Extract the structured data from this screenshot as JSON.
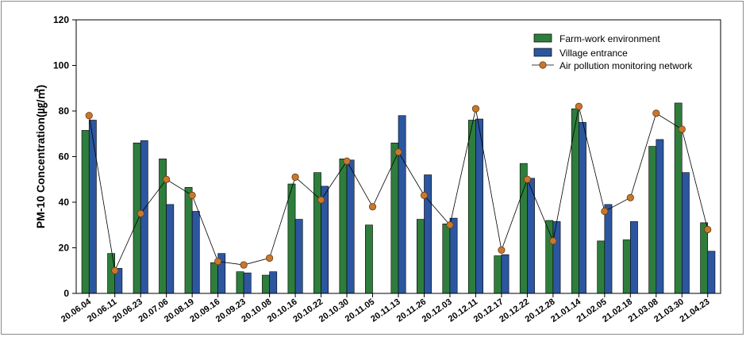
{
  "chart_data": {
    "type": "bar",
    "ylabel": "PM-10 Concentration(㎍/㎥)",
    "xlabel": "",
    "ylim": [
      0,
      120
    ],
    "yticks": [
      0,
      20,
      40,
      60,
      80,
      100,
      120
    ],
    "legend_position": "top-right",
    "categories": [
      "20.06.04",
      "20.06.11",
      "20.06.23",
      "20.07.06",
      "20.08.19",
      "20.09.16",
      "20.09.23",
      "20.10.08",
      "20.10.16",
      "20.10.22",
      "20.10.30",
      "20.11.05",
      "20.11.13",
      "20.11.26",
      "20.12.03",
      "20.12.11",
      "20.12.17",
      "20.12.22",
      "20.12.28",
      "21.01.14",
      "21.02.05",
      "21.02.18",
      "21.03.08",
      "21.03.30",
      "21.04.23"
    ],
    "series": [
      {
        "name": "Farm-work environment",
        "kind": "bar",
        "color": "#2e7d3c",
        "values": [
          71.5,
          17.5,
          66,
          59,
          46.5,
          13.5,
          9.5,
          8,
          48,
          53,
          59,
          30,
          66,
          32.5,
          30.5,
          76,
          16.5,
          57,
          32,
          81,
          23,
          23.5,
          64.5,
          83.5,
          31
        ]
      },
      {
        "name": "Village entrance",
        "kind": "bar",
        "color": "#2c56a0",
        "values": [
          76,
          11,
          67,
          39,
          36,
          17.5,
          9,
          9.5,
          32.5,
          47,
          58.5,
          null,
          78,
          52,
          33,
          76.5,
          17,
          50.5,
          31.5,
          75,
          39,
          31.5,
          67.5,
          53,
          18.5
        ]
      },
      {
        "name": "Air pollution monitoring network",
        "kind": "line",
        "color": "#c8782e",
        "values": [
          78,
          10,
          35,
          50,
          43,
          14,
          12.5,
          15.5,
          51,
          41,
          58,
          38,
          62,
          43,
          30,
          81,
          19,
          50,
          23,
          82,
          36,
          42,
          79,
          72,
          28
        ]
      }
    ]
  }
}
